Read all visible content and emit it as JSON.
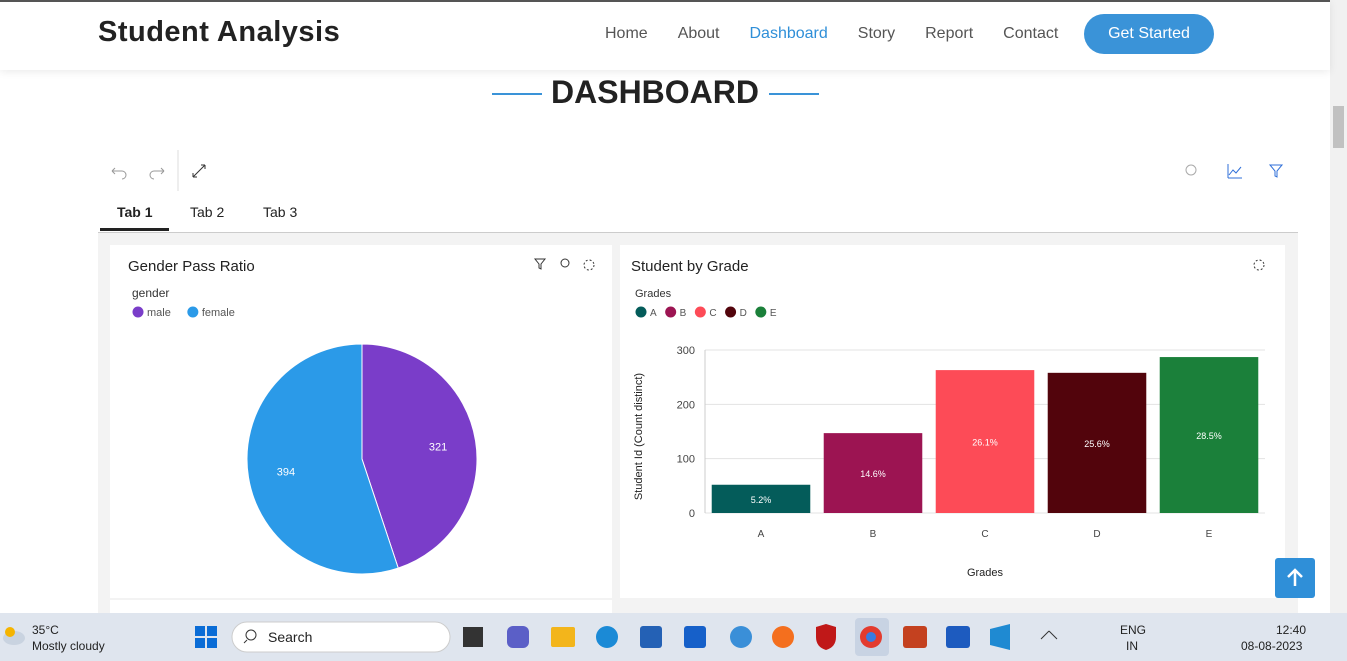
{
  "nav": {
    "brand": "Student Analysis",
    "links": [
      "Home",
      "About",
      "Dashboard",
      "Story",
      "Report",
      "Contact"
    ],
    "active": 2,
    "button": "Get Started"
  },
  "section_title": "DASHBOARD",
  "tabs": [
    "Tab 1",
    "Tab 2",
    "Tab 3"
  ],
  "chart_data": [
    {
      "type": "pie",
      "title": "Gender Pass Ratio",
      "legend_title": "gender",
      "categories": [
        "male",
        "female"
      ],
      "values": [
        321,
        394
      ],
      "colors": [
        "#7a3dc9",
        "#2b9ae8"
      ]
    },
    {
      "type": "bar",
      "title": "Student by Grade",
      "legend_title": "Grades",
      "categories": [
        "A",
        "B",
        "C",
        "D",
        "E"
      ],
      "values": [
        52,
        147,
        263,
        258,
        287
      ],
      "share_labels": [
        "5.2%",
        "14.6%",
        "26.1%",
        "25.6%",
        "28.5%"
      ],
      "colors": [
        "#045c5a",
        "#9c1452",
        "#fd4b57",
        "#52040c",
        "#1b803a"
      ],
      "x_label": "Grades",
      "y_label": "Student Id (Count distinct)",
      "ylim": [
        0,
        300
      ],
      "yticks": [
        0,
        100,
        200,
        300
      ],
      "grid": true
    }
  ],
  "taskbar": {
    "temp": "35°C",
    "weather": "Mostly cloudy",
    "search": "Search",
    "lang": "ENG",
    "region": "IN",
    "time": "12:40",
    "date": "08-08-2023"
  }
}
